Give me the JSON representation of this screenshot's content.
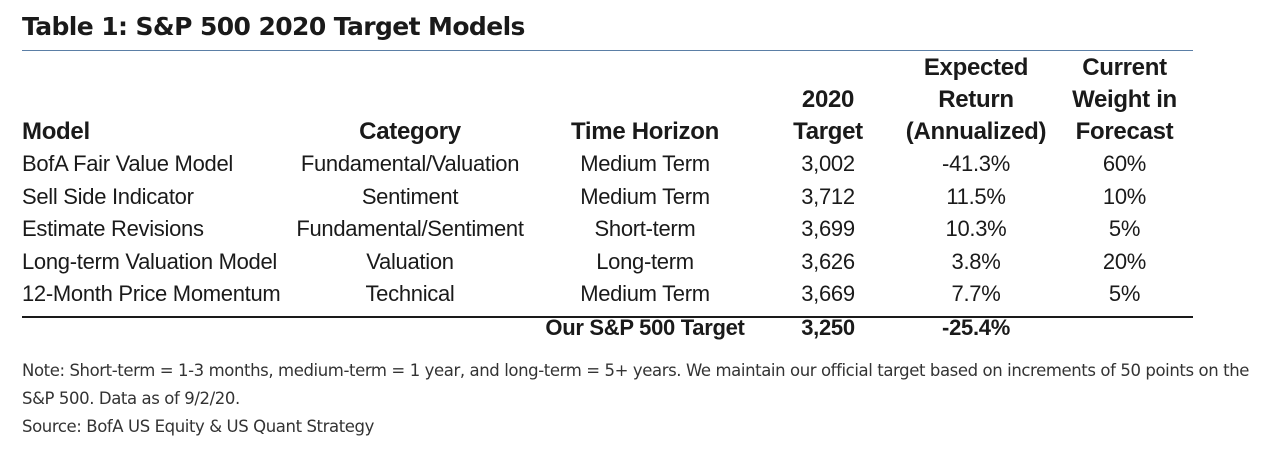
{
  "title": "Table 1: S&P 500 2020 Target Models",
  "table": {
    "headers": [
      "Model",
      "Category",
      "Time Horizon",
      "2020\nTarget",
      "Expected\nReturn\n(Annualized)",
      "Current\nWeight in\nForecast"
    ],
    "rows": [
      [
        "BofA Fair Value Model",
        "Fundamental/Valuation",
        "Medium Term",
        "3,002",
        "-41.3%",
        "60%"
      ],
      [
        "Sell Side Indicator",
        "Sentiment",
        "Medium Term",
        "3,712",
        "11.5%",
        "10%"
      ],
      [
        "Estimate Revisions",
        "Fundamental/Sentiment",
        "Short-term",
        "3,699",
        "10.3%",
        "5%"
      ],
      [
        "Long-term Valuation Model",
        "Valuation",
        "Long-term",
        "3,626",
        "3.8%",
        "20%"
      ],
      [
        "12-Month Price Momentum",
        "Technical",
        "Medium Term",
        "3,669",
        "7.7%",
        "5%"
      ]
    ],
    "total": {
      "label": "Our S&P 500 Target",
      "target": "3,250",
      "return": "-25.4%"
    }
  },
  "notes": {
    "note": "Note: Short-term = 1-3 months, medium-term = 1 year, and long-term = 5+ years. We maintain our official target based on increments of 50 points on the S&P 500. Data as of 9/2/20.",
    "source": "Source: BofA US Equity & US Quant Strategy"
  }
}
